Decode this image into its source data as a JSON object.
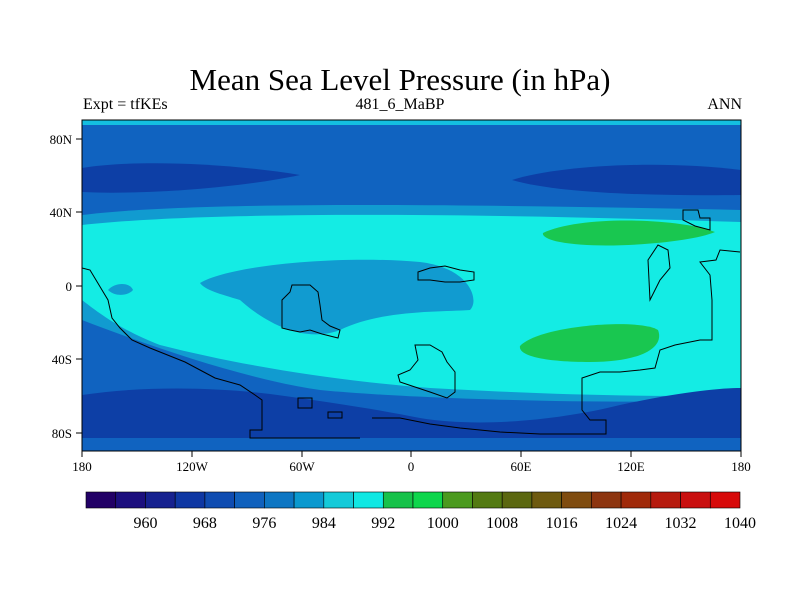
{
  "title": "Mean Sea Level Pressure (in hPa)",
  "subtitle_left": "Expt = tfKEs",
  "subtitle_center": "481_6_MaBP",
  "subtitle_right": "ANN",
  "x_ticks": [
    "180",
    "120W",
    "60W",
    "0",
    "60E",
    "120E",
    "180"
  ],
  "y_ticks": [
    "80N",
    "40N",
    "0",
    "40S",
    "80S"
  ],
  "colorbar": {
    "labels": [
      "960",
      "968",
      "976",
      "984",
      "992",
      "1000",
      "1008",
      "1016",
      "1024",
      "1032",
      "1040"
    ],
    "colors": [
      "#220066",
      "#1c0f7e",
      "#16218f",
      "#0e37a3",
      "#0f4cb1",
      "#1061bd",
      "#0d76c3",
      "#0b99cf",
      "#14cad9",
      "#10e8e3",
      "#17c24a",
      "#0ed64c",
      "#4b9a1f",
      "#537a12",
      "#5b6710",
      "#6e5a10",
      "#7f4c10",
      "#8d3510",
      "#a02a0a",
      "#b61b0e",
      "#c90f0f",
      "#d70a0a"
    ]
  },
  "fill_colors": {
    "deep_blue": "#0d3fa6",
    "mid_blue": "#1063c0",
    "light_blue": "#119bd0",
    "cyan": "#14ece4",
    "green": "#19c750"
  }
}
